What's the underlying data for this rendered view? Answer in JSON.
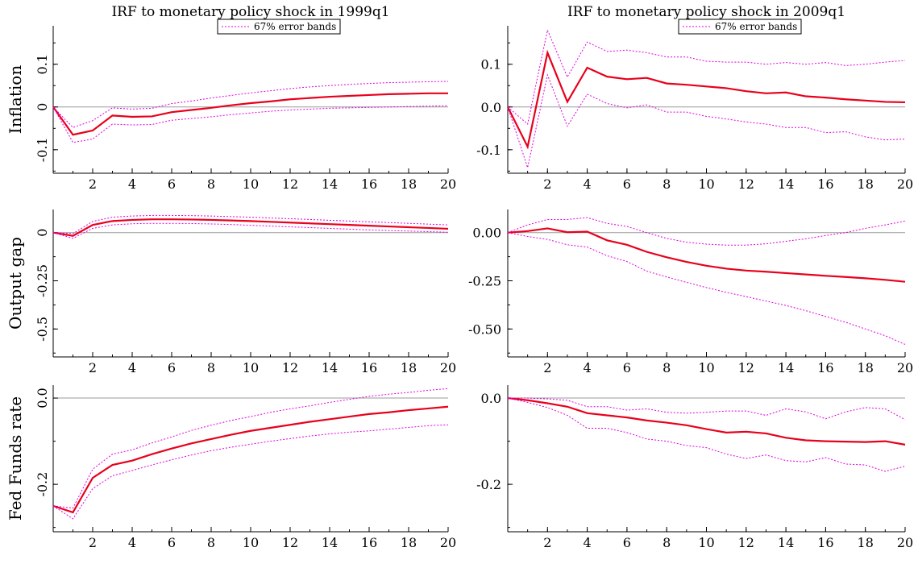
{
  "figure": {
    "column_titles": [
      "IRF to monetary policy shock in 1999q1",
      "IRF to monetary policy shock in 2009q1"
    ],
    "row_labels": [
      "Inflation",
      "Output gap",
      "Fed Funds rate"
    ],
    "legend_label": "67% error bands"
  },
  "colors": {
    "median": "#e8001c",
    "bands": "#e000e0",
    "zero_line": "#9a9a9a",
    "axis": "#000000"
  },
  "chart_data": [
    {
      "type": "line",
      "row": "Inflation",
      "column": 0,
      "title": "IRF to monetary policy shock in 1999q1",
      "ylabel": "Inflation",
      "legend": "67% error bands",
      "x": [
        0,
        1,
        2,
        3,
        4,
        5,
        6,
        7,
        8,
        9,
        10,
        11,
        12,
        13,
        14,
        15,
        16,
        17,
        18,
        19,
        20
      ],
      "xlim": [
        0,
        20
      ],
      "xticks": [
        2,
        4,
        6,
        8,
        10,
        12,
        14,
        16,
        18,
        20
      ],
      "ylim": [
        -0.155,
        0.19
      ],
      "yticks": [
        -0.1,
        0,
        0.1
      ],
      "ytick_labels": [
        "-0.1",
        "0",
        "0.1"
      ],
      "ytick_style": "rotated",
      "series": [
        {
          "role": "median",
          "values": [
            0,
            -0.065,
            -0.055,
            -0.02,
            -0.023,
            -0.022,
            -0.012,
            -0.007,
            -0.002,
            0.004,
            0.009,
            0.013,
            0.018,
            0.021,
            0.024,
            0.026,
            0.028,
            0.03,
            0.031,
            0.032,
            0.032
          ]
        },
        {
          "role": "upper",
          "values": [
            0,
            -0.048,
            -0.032,
            -0.002,
            -0.005,
            -0.003,
            0.008,
            0.014,
            0.021,
            0.027,
            0.033,
            0.038,
            0.043,
            0.047,
            0.05,
            0.053,
            0.055,
            0.057,
            0.058,
            0.059,
            0.06
          ]
        },
        {
          "role": "lower",
          "values": [
            0,
            -0.083,
            -0.075,
            -0.04,
            -0.042,
            -0.041,
            -0.031,
            -0.027,
            -0.023,
            -0.018,
            -0.014,
            -0.01,
            -0.007,
            -0.005,
            -0.003,
            -0.002,
            -0.001,
            0,
            0.001,
            0.002,
            0.003
          ]
        }
      ]
    },
    {
      "type": "line",
      "row": "Inflation",
      "column": 1,
      "title": "IRF to monetary policy shock in 2009q1",
      "legend": "67% error bands",
      "x": [
        0,
        1,
        2,
        3,
        4,
        5,
        6,
        7,
        8,
        9,
        10,
        11,
        12,
        13,
        14,
        15,
        16,
        17,
        18,
        19,
        20
      ],
      "xlim": [
        0,
        20
      ],
      "xticks": [
        2,
        4,
        6,
        8,
        10,
        12,
        14,
        16,
        18,
        20
      ],
      "ylim": [
        -0.155,
        0.19
      ],
      "yticks": [
        -0.1,
        0,
        0.1
      ],
      "ytick_labels": [
        "-0.1",
        "0.0",
        "0.1"
      ],
      "ytick_style": "horizontal",
      "series": [
        {
          "role": "median",
          "values": [
            0,
            -0.093,
            0.127,
            0.012,
            0.092,
            0.071,
            0.065,
            0.068,
            0.055,
            0.052,
            0.048,
            0.044,
            0.037,
            0.032,
            0.034,
            0.025,
            0.022,
            0.018,
            0.015,
            0.012,
            0.011
          ]
        },
        {
          "role": "upper",
          "values": [
            0,
            -0.04,
            0.18,
            0.07,
            0.152,
            0.13,
            0.133,
            0.127,
            0.117,
            0.117,
            0.107,
            0.105,
            0.105,
            0.1,
            0.104,
            0.1,
            0.104,
            0.097,
            0.1,
            0.105,
            0.109
          ]
        },
        {
          "role": "lower",
          "values": [
            0,
            -0.142,
            0.075,
            -0.045,
            0.03,
            0.008,
            -0.002,
            0.005,
            -0.012,
            -0.012,
            -0.022,
            -0.028,
            -0.035,
            -0.04,
            -0.048,
            -0.048,
            -0.06,
            -0.058,
            -0.07,
            -0.077,
            -0.075
          ]
        }
      ]
    },
    {
      "type": "line",
      "row": "Output gap",
      "column": 0,
      "ylabel": "Output gap",
      "x": [
        0,
        1,
        2,
        3,
        4,
        5,
        6,
        7,
        8,
        9,
        10,
        11,
        12,
        13,
        14,
        15,
        16,
        17,
        18,
        19,
        20
      ],
      "xlim": [
        0,
        20
      ],
      "xticks": [
        2,
        4,
        6,
        8,
        10,
        12,
        14,
        16,
        18,
        20
      ],
      "ylim": [
        -0.645,
        0.12
      ],
      "yticks": [
        -0.5,
        -0.25,
        0
      ],
      "ytick_labels": [
        "-0.5",
        "-0.25",
        "0"
      ],
      "ytick_style": "rotated",
      "series": [
        {
          "role": "median",
          "values": [
            0,
            -0.017,
            0.04,
            0.06,
            0.066,
            0.069,
            0.069,
            0.068,
            0.066,
            0.063,
            0.06,
            0.056,
            0.052,
            0.048,
            0.044,
            0.04,
            0.036,
            0.032,
            0.028,
            0.024,
            0.02
          ]
        },
        {
          "role": "upper",
          "values": [
            0,
            -0.005,
            0.058,
            0.08,
            0.086,
            0.089,
            0.089,
            0.088,
            0.086,
            0.083,
            0.08,
            0.076,
            0.072,
            0.068,
            0.064,
            0.06,
            0.056,
            0.052,
            0.048,
            0.044,
            0.04
          ]
        },
        {
          "role": "lower",
          "values": [
            0,
            -0.03,
            0.022,
            0.04,
            0.046,
            0.048,
            0.048,
            0.047,
            0.045,
            0.042,
            0.038,
            0.034,
            0.03,
            0.026,
            0.022,
            0.018,
            0.014,
            0.011,
            0.008,
            0.005,
            0.002
          ]
        }
      ]
    },
    {
      "type": "line",
      "row": "Output gap",
      "column": 1,
      "x": [
        0,
        1,
        2,
        3,
        4,
        5,
        6,
        7,
        8,
        9,
        10,
        11,
        12,
        13,
        14,
        15,
        16,
        17,
        18,
        19,
        20
      ],
      "xlim": [
        0,
        20
      ],
      "xticks": [
        2,
        4,
        6,
        8,
        10,
        12,
        14,
        16,
        18,
        20
      ],
      "ylim": [
        -0.645,
        0.12
      ],
      "yticks": [
        -0.5,
        -0.25,
        0
      ],
      "ytick_labels": [
        "-0.50",
        "-0.25",
        "0.00"
      ],
      "ytick_style": "horizontal",
      "series": [
        {
          "role": "median",
          "values": [
            0,
            0.008,
            0.022,
            0.002,
            0.005,
            -0.04,
            -0.063,
            -0.1,
            -0.128,
            -0.152,
            -0.172,
            -0.187,
            -0.197,
            -0.203,
            -0.21,
            -0.217,
            -0.224,
            -0.23,
            -0.237,
            -0.245,
            -0.255
          ]
        },
        {
          "role": "upper",
          "values": [
            0,
            0.04,
            0.068,
            0.068,
            0.078,
            0.048,
            0.032,
            0,
            -0.03,
            -0.05,
            -0.06,
            -0.065,
            -0.065,
            -0.058,
            -0.045,
            -0.032,
            -0.015,
            0,
            0.022,
            0.04,
            0.06
          ]
        },
        {
          "role": "lower",
          "values": [
            0,
            -0.02,
            -0.035,
            -0.063,
            -0.075,
            -0.12,
            -0.15,
            -0.2,
            -0.23,
            -0.258,
            -0.285,
            -0.31,
            -0.332,
            -0.355,
            -0.378,
            -0.405,
            -0.435,
            -0.465,
            -0.5,
            -0.535,
            -0.58
          ]
        }
      ]
    },
    {
      "type": "line",
      "row": "Fed Funds rate",
      "column": 0,
      "ylabel": "Fed Funds rate",
      "x": [
        0,
        1,
        2,
        3,
        4,
        5,
        6,
        7,
        8,
        9,
        10,
        11,
        12,
        13,
        14,
        15,
        16,
        17,
        18,
        19,
        20
      ],
      "xlim": [
        0,
        20
      ],
      "xticks": [
        2,
        4,
        6,
        8,
        10,
        12,
        14,
        16,
        18,
        20
      ],
      "ylim": [
        -0.31,
        0.03
      ],
      "yticks": [
        -0.2,
        0
      ],
      "ytick_labels": [
        "-0.2",
        "0.0"
      ],
      "ytick_style": "rotated",
      "series": [
        {
          "role": "median",
          "values": [
            -0.25,
            -0.265,
            -0.185,
            -0.155,
            -0.145,
            -0.13,
            -0.117,
            -0.105,
            -0.095,
            -0.085,
            -0.076,
            -0.069,
            -0.062,
            -0.055,
            -0.049,
            -0.043,
            -0.037,
            -0.033,
            -0.028,
            -0.024,
            -0.02
          ]
        },
        {
          "role": "upper",
          "values": [
            -0.25,
            -0.255,
            -0.165,
            -0.13,
            -0.12,
            -0.104,
            -0.09,
            -0.075,
            -0.063,
            -0.052,
            -0.043,
            -0.033,
            -0.025,
            -0.018,
            -0.01,
            -0.003,
            0.004,
            0.009,
            0.013,
            0.018,
            0.022
          ]
        },
        {
          "role": "lower",
          "values": [
            -0.25,
            -0.28,
            -0.21,
            -0.18,
            -0.168,
            -0.155,
            -0.143,
            -0.132,
            -0.122,
            -0.114,
            -0.107,
            -0.1,
            -0.094,
            -0.088,
            -0.083,
            -0.079,
            -0.076,
            -0.072,
            -0.068,
            -0.064,
            -0.062
          ]
        }
      ]
    },
    {
      "type": "line",
      "row": "Fed Funds rate",
      "column": 1,
      "x": [
        0,
        1,
        2,
        3,
        4,
        5,
        6,
        7,
        8,
        9,
        10,
        11,
        12,
        13,
        14,
        15,
        16,
        17,
        18,
        19,
        20
      ],
      "xlim": [
        0,
        20
      ],
      "xticks": [
        2,
        4,
        6,
        8,
        10,
        12,
        14,
        16,
        18,
        20
      ],
      "ylim": [
        -0.31,
        0.03
      ],
      "yticks": [
        -0.2,
        0
      ],
      "ytick_labels": [
        "-0.2",
        "0.0"
      ],
      "ytick_style": "horizontal",
      "series": [
        {
          "role": "median",
          "values": [
            0,
            -0.005,
            -0.012,
            -0.02,
            -0.035,
            -0.04,
            -0.045,
            -0.052,
            -0.057,
            -0.063,
            -0.072,
            -0.08,
            -0.078,
            -0.082,
            -0.092,
            -0.098,
            -0.1,
            -0.101,
            -0.102,
            -0.1,
            -0.108
          ]
        },
        {
          "role": "upper",
          "values": [
            0,
            0,
            -0.002,
            -0.005,
            -0.02,
            -0.02,
            -0.028,
            -0.025,
            -0.033,
            -0.035,
            -0.033,
            -0.03,
            -0.03,
            -0.04,
            -0.025,
            -0.032,
            -0.048,
            -0.032,
            -0.022,
            -0.025,
            -0.05
          ]
        },
        {
          "role": "lower",
          "values": [
            0,
            -0.01,
            -0.022,
            -0.04,
            -0.07,
            -0.07,
            -0.08,
            -0.095,
            -0.1,
            -0.11,
            -0.115,
            -0.13,
            -0.14,
            -0.132,
            -0.145,
            -0.148,
            -0.138,
            -0.153,
            -0.155,
            -0.17,
            -0.158
          ]
        }
      ]
    }
  ]
}
